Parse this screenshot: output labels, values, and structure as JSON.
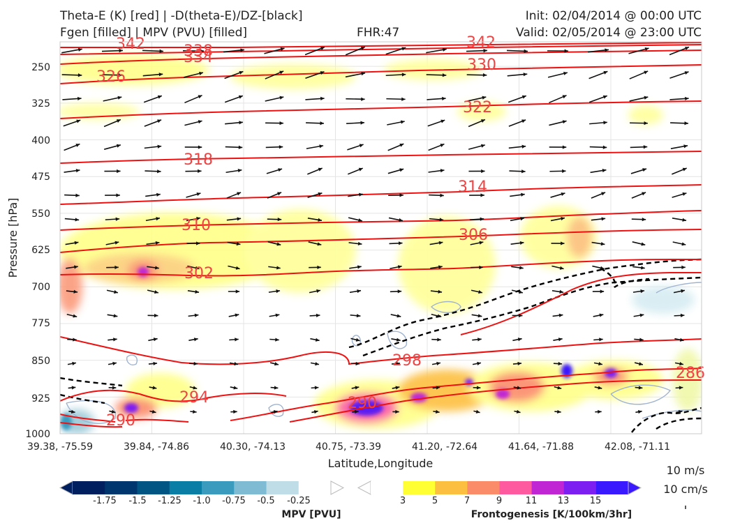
{
  "header": {
    "line1_left": "Theta-E (K) [red] | -D(theta-E)/DZ-[black]",
    "line2_left": "Fgen [filled] | MPV (PVU) [filled]",
    "fhr": "FHR:47",
    "init": "Init: 02/04/2014 @ 00:00 UTC",
    "valid": "Valid: 02/05/2014 @ 23:00 UTC"
  },
  "colors": {
    "theta_e": "#ee1111",
    "stability": "#000000",
    "fgen_scale": [
      "#ffff33",
      "#fdbf3f",
      "#fb8c6a",
      "#fd5aa0",
      "#c026d3",
      "#7e1ff2",
      "#3a19ff"
    ],
    "mpv_scale": [
      "#001f5f",
      "#00366e",
      "#005583",
      "#0b7ea6",
      "#3b9bbf",
      "#7fbcd4",
      "#bfdde6",
      "#ffffff"
    ]
  },
  "chart_data": {
    "type": "cross-section",
    "xlabel": "Latitude,Longitude",
    "ylabel": "Pressure [hPa]",
    "ylim": [
      1000,
      200
    ],
    "x_ticks": [
      "39.38, -75.59",
      "39.84, -74.86",
      "40.30, -74.13",
      "40.75, -73.39",
      "41.20, -72.64",
      "41.64, -71.88",
      "42.08, -71.11"
    ],
    "y_ticks": [
      1000,
      925,
      850,
      775,
      700,
      625,
      550,
      475,
      400,
      325,
      250
    ],
    "grid": true,
    "theta_e_contours": [
      {
        "level": 290,
        "label": "290"
      },
      {
        "level": 290,
        "label": "290"
      },
      {
        "level": 294,
        "label": "294"
      },
      {
        "level": 298,
        "label": "298"
      },
      {
        "level": 286,
        "label": "286"
      },
      {
        "level": 302,
        "label": "302"
      },
      {
        "level": 306,
        "label": "306"
      },
      {
        "level": 310,
        "label": "310"
      },
      {
        "level": 314,
        "label": "314"
      },
      {
        "level": 318,
        "label": "318"
      },
      {
        "level": 322,
        "label": "322"
      },
      {
        "level": 326,
        "label": "326"
      },
      {
        "level": 330,
        "label": "330"
      },
      {
        "level": 334,
        "label": "334"
      },
      {
        "level": 338,
        "label": "338"
      },
      {
        "level": 342,
        "label": "342"
      },
      {
        "level": 342,
        "label": "342"
      }
    ],
    "fgen_colorbar": {
      "label": "Frontogenesis [K/100km/3hr]",
      "ticks": [
        "3",
        "5",
        "7",
        "9",
        "11",
        "13",
        "15"
      ]
    },
    "mpv_colorbar": {
      "label": "MPV [PVU]",
      "ticks": [
        "-1.75",
        "-1.5",
        "-1.25",
        "-1.0",
        "-0.75",
        "-0.5",
        "-0.25"
      ]
    },
    "wind_key": {
      "line1": "10 m/s",
      "line2": "10 cm/s"
    }
  }
}
